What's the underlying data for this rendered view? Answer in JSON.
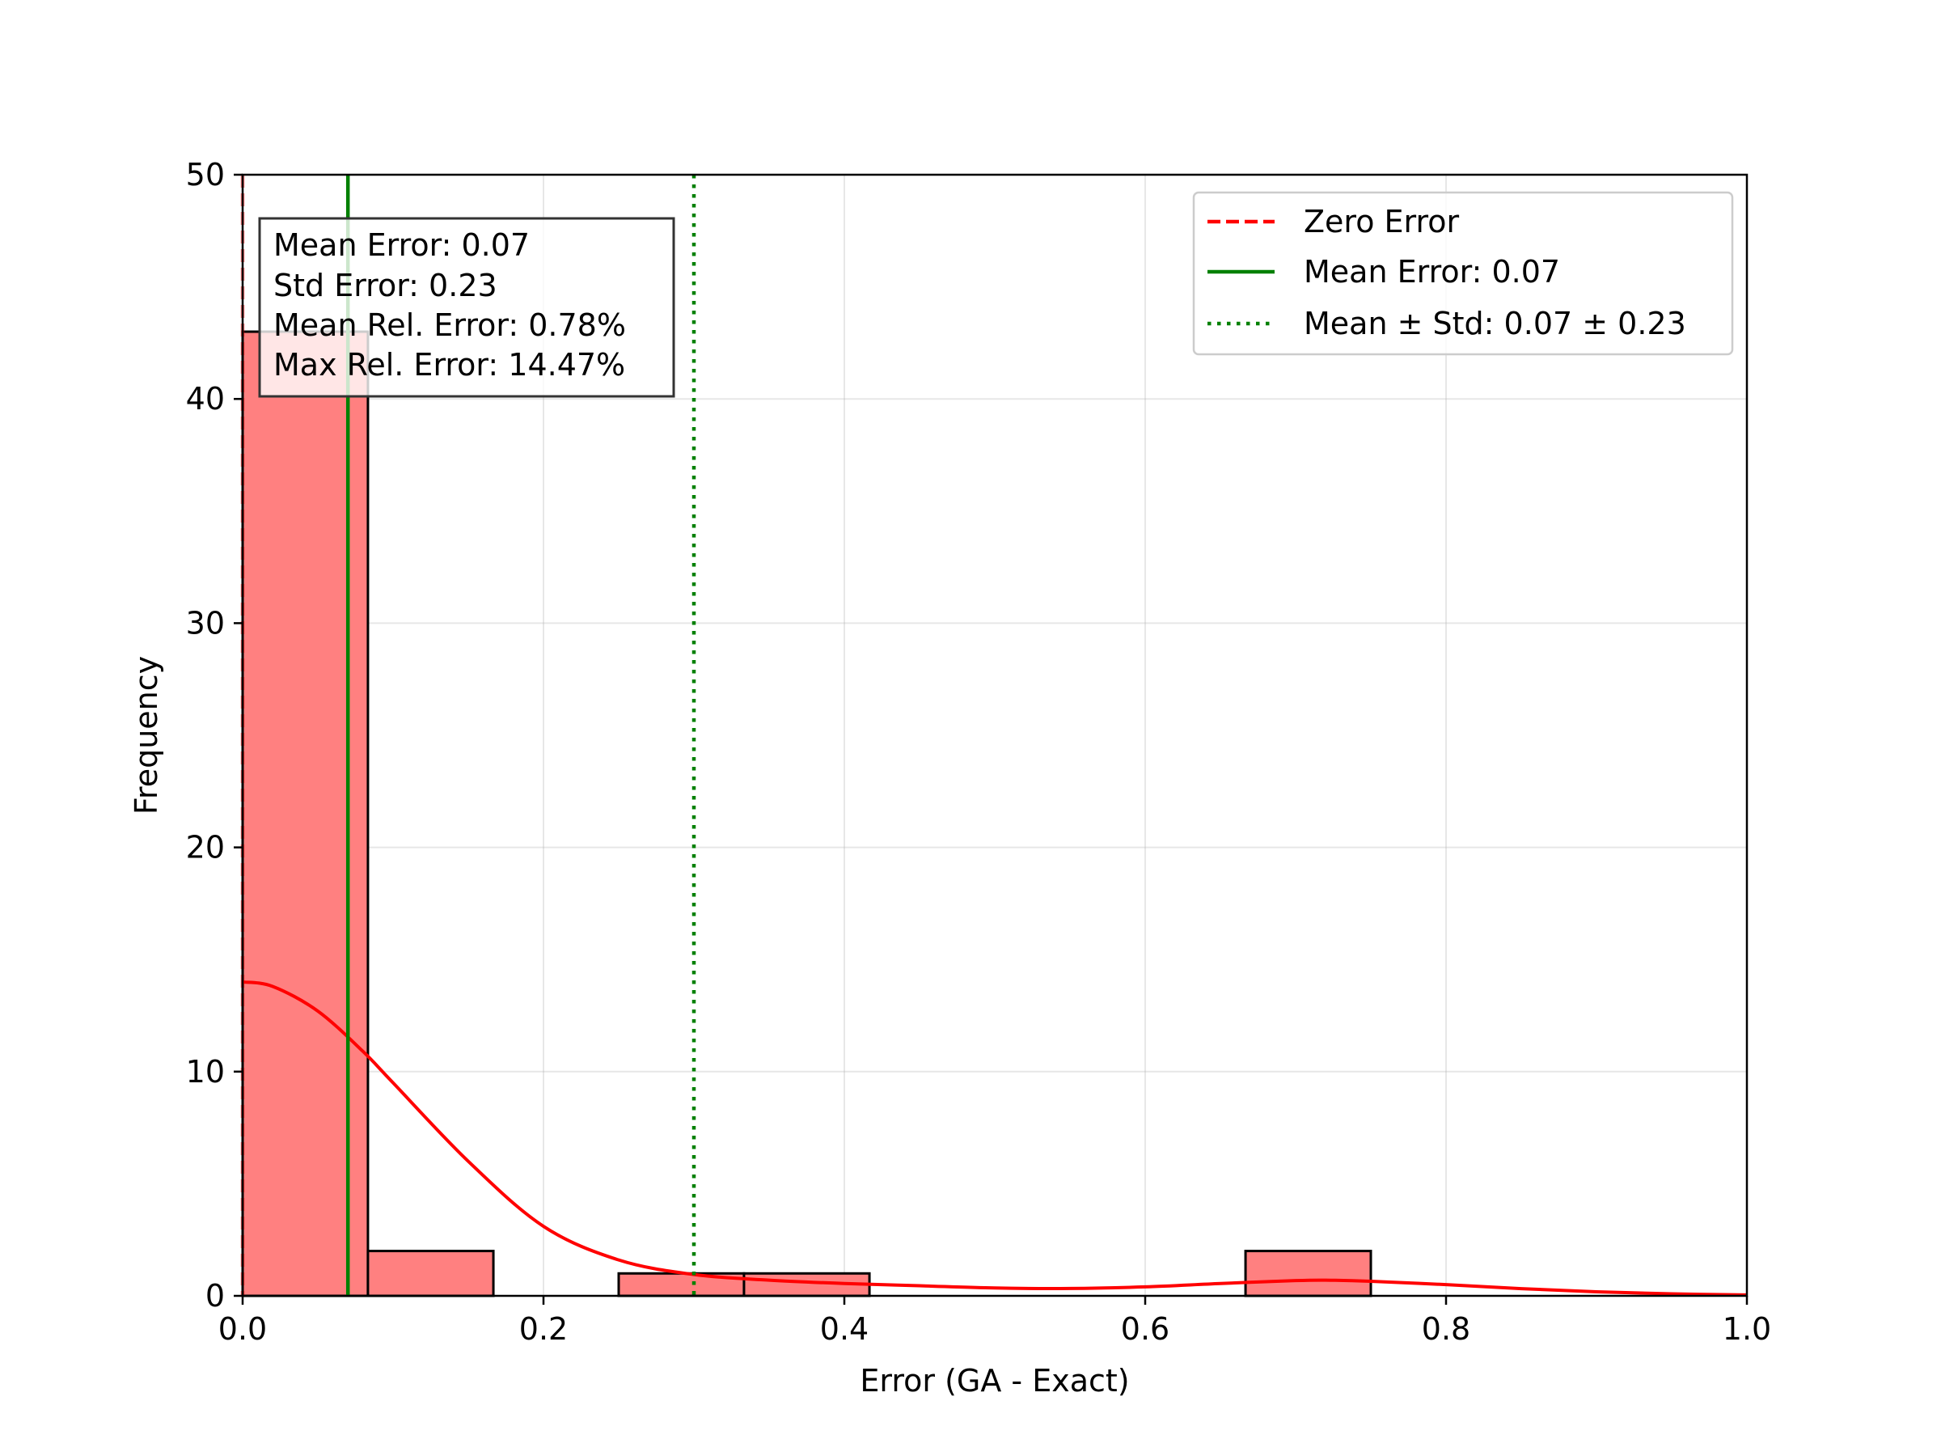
{
  "chart_data": {
    "type": "bar",
    "title": "",
    "xlabel": "Error (GA - Exact)",
    "ylabel": "Frequency",
    "xlim": [
      0.0,
      1.0
    ],
    "ylim": [
      0,
      50
    ],
    "xticks": [
      "0.0",
      "0.2",
      "0.4",
      "0.6",
      "0.8",
      "1.0"
    ],
    "yticks": [
      "0",
      "10",
      "20",
      "30",
      "40",
      "50"
    ],
    "grid": true,
    "bins": [
      {
        "start": 0.0,
        "end": 0.0833,
        "count": 43
      },
      {
        "start": 0.0833,
        "end": 0.1667,
        "count": 2
      },
      {
        "start": 0.1667,
        "end": 0.25,
        "count": 0
      },
      {
        "start": 0.25,
        "end": 0.3333,
        "count": 1
      },
      {
        "start": 0.3333,
        "end": 0.4167,
        "count": 1
      },
      {
        "start": 0.4167,
        "end": 0.5,
        "count": 0
      },
      {
        "start": 0.5,
        "end": 0.5833,
        "count": 0
      },
      {
        "start": 0.5833,
        "end": 0.6667,
        "count": 0
      },
      {
        "start": 0.6667,
        "end": 0.75,
        "count": 2
      },
      {
        "start": 0.75,
        "end": 0.8333,
        "count": 0
      },
      {
        "start": 0.8333,
        "end": 0.9167,
        "count": 0
      },
      {
        "start": 0.9167,
        "end": 1.0,
        "count": 0
      }
    ],
    "kde": {
      "x": [
        0.0,
        0.02,
        0.05,
        0.08,
        0.1,
        0.15,
        0.2,
        0.25,
        0.3,
        0.35,
        0.4,
        0.45,
        0.5,
        0.55,
        0.6,
        0.65,
        0.7,
        0.72,
        0.75,
        0.8,
        0.85,
        0.9,
        0.95,
        1.0
      ],
      "y": [
        14.0,
        13.8,
        12.7,
        10.9,
        9.5,
        6.0,
        3.1,
        1.6,
        0.95,
        0.7,
        0.55,
        0.45,
        0.35,
        0.33,
        0.4,
        0.55,
        0.68,
        0.7,
        0.65,
        0.5,
        0.32,
        0.18,
        0.09,
        0.04
      ]
    },
    "vlines": [
      {
        "name": "Zero Error",
        "x": 0.0,
        "color": "#ff0000",
        "style": "dashed"
      },
      {
        "name": "Mean Error: 0.07",
        "x": 0.07,
        "color": "#008000",
        "style": "solid"
      },
      {
        "name": "Mean ± Std: 0.07 ± 0.23",
        "x": 0.3,
        "color": "#008000",
        "style": "dotted"
      }
    ],
    "bar_color": "#ff8080",
    "kde_color": "#ff0000",
    "legend_position": "top-right",
    "stats_box": {
      "lines": [
        "Mean Error: 0.07",
        "Std Error: 0.23",
        "Mean Rel. Error: 0.78%",
        "Max Rel. Error: 14.47%"
      ],
      "position": "top-left"
    }
  }
}
